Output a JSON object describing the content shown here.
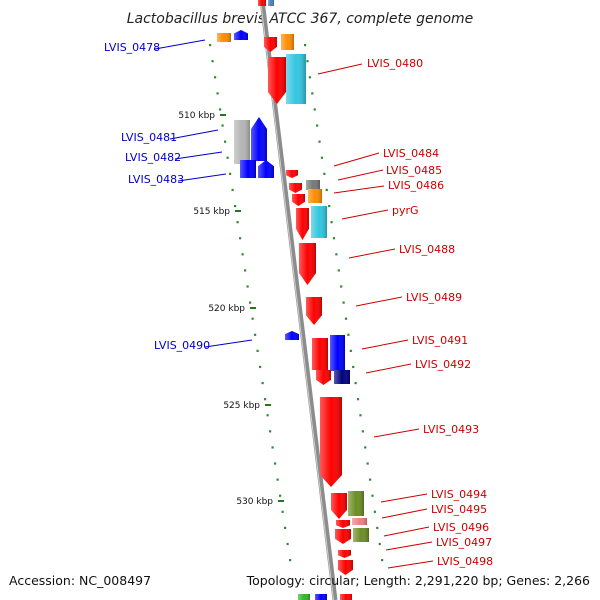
{
  "title": "Lactobacillus brevis ATCC 367, complete genome",
  "footer": {
    "accession": "Accession: NC_008497",
    "stats": "Topology: circular; Length: 2,291,220 bp; Genes: 2,266"
  },
  "colors": {
    "plus_strand_label": "#0000cc",
    "minus_strand_label": "#cc0000",
    "backbone": "#8c8c8c",
    "dotted_ring": "#2e8b2e",
    "red_gene": "#ff0000",
    "cyan_gene": "#33c6e0",
    "blue_gene": "#0000ff",
    "orange_gene": "#ff8c00",
    "grey_gene": "#b4b4b4",
    "navy_gene": "#000080",
    "olive_gene": "#6b8e23",
    "steel_gene": "#4682b4",
    "salmon_gene": "#f08080",
    "green_gene": "#2eb82e"
  },
  "bp_ticks": [
    "510 kbp",
    "515 kbp",
    "520 kbp",
    "525 kbp",
    "530 kbp"
  ],
  "genes_plus_labels": [
    "LVIS_0478",
    "LVIS_0481",
    "LVIS_0482",
    "LVIS_0483",
    "LVIS_0490"
  ],
  "genes_minus_labels": [
    "LVIS_0480",
    "LVIS_0484",
    "LVIS_0485",
    "LVIS_0486",
    "pyrG",
    "LVIS_0488",
    "LVIS_0489",
    "LVIS_0491",
    "LVIS_0492",
    "LVIS_0493",
    "LVIS_0494",
    "LVIS_0495",
    "LVIS_0496",
    "LVIS_0497",
    "LVIS_0498"
  ]
}
